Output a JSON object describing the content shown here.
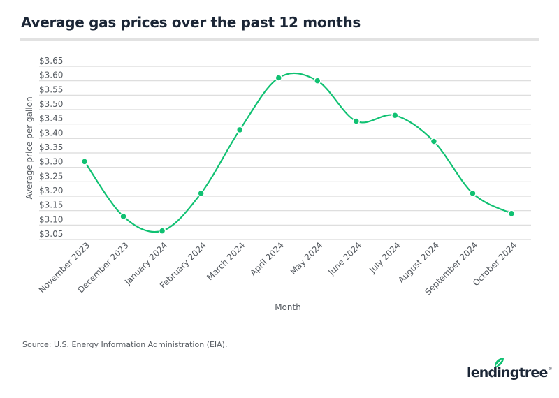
{
  "header": {
    "title": "Average gas prices over the past 12 months"
  },
  "footer": {
    "source": "Source: U.S. Energy Information Administration (EIA).",
    "logo_text": "lendingtree",
    "logo_mark": "®"
  },
  "colors": {
    "line": "#10c172",
    "grid": "#d9d9d9",
    "title": "#1b2636",
    "text": "#555a60"
  },
  "chart_data": {
    "type": "line",
    "title": "Average gas prices over the past 12 months",
    "xlabel": "Month",
    "ylabel": "Average price per gallon",
    "categories": [
      "November 2023",
      "December 2023",
      "January 2024",
      "February 2024",
      "March 2024",
      "April 2024",
      "May 2024",
      "June 2024",
      "July 2024",
      "August 2024",
      "September 2024",
      "October 2024"
    ],
    "series": [
      {
        "name": "Average price per gallon",
        "values": [
          3.32,
          3.13,
          3.08,
          3.21,
          3.43,
          3.61,
          3.6,
          3.46,
          3.48,
          3.39,
          3.21,
          3.14
        ]
      }
    ],
    "ylim": [
      3.05,
      3.65
    ],
    "yticks": [
      3.65,
      3.6,
      3.55,
      3.5,
      3.45,
      3.4,
      3.35,
      3.3,
      3.25,
      3.2,
      3.15,
      3.1,
      3.05
    ],
    "ytick_labels": [
      "$3.65",
      "$3.60",
      "$3.55",
      "$3.50",
      "$3.45",
      "$3.40",
      "$3.35",
      "$3.30",
      "$3.25",
      "$3.20",
      "$3.15",
      "$3.10",
      "$3.05"
    ],
    "grid": true,
    "smooth": true,
    "legend": "none"
  }
}
